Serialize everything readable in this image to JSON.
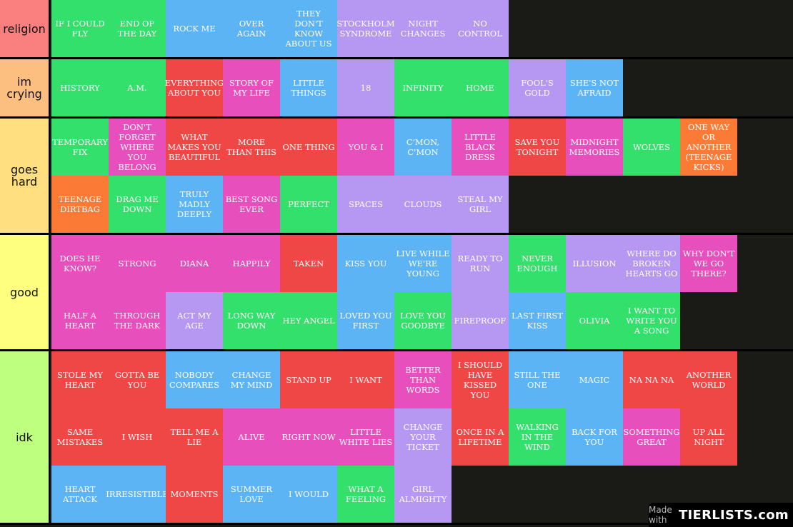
{
  "colors": {
    "background": "#1a1a17",
    "green": "#33e06b",
    "blue": "#5db4f4",
    "purple": "#b697f2",
    "red": "#ef4646",
    "pink": "#e74fbc",
    "orange": "#fb7a35"
  },
  "tiers": [
    {
      "label": "religion",
      "color": "#fa7f7f",
      "items": [
        {
          "text": "IF I COULD FLY",
          "color": "green"
        },
        {
          "text": "END OF THE DAY",
          "color": "green"
        },
        {
          "text": "ROCK ME",
          "color": "blue"
        },
        {
          "text": "OVER AGAIN",
          "color": "blue"
        },
        {
          "text": "THEY DON'T KNOW ABOUT US",
          "color": "blue"
        },
        {
          "text": "STOCKHOLM SYNDROME",
          "color": "purple"
        },
        {
          "text": "NIGHT CHANGES",
          "color": "purple"
        },
        {
          "text": "NO CONTROL",
          "color": "purple"
        }
      ]
    },
    {
      "label": "im crying",
      "color": "#fdbf7f",
      "items": [
        {
          "text": "HISTORY",
          "color": "green"
        },
        {
          "text": "A.M.",
          "color": "green"
        },
        {
          "text": "EVERYTHING ABOUT YOU",
          "color": "red"
        },
        {
          "text": "STORY OF MY LIFE",
          "color": "pink"
        },
        {
          "text": "LITTLE THINGS",
          "color": "blue"
        },
        {
          "text": "18",
          "color": "purple"
        },
        {
          "text": "INFINITY",
          "color": "green"
        },
        {
          "text": "HOME",
          "color": "green"
        },
        {
          "text": "FOOL'S GOLD",
          "color": "purple"
        },
        {
          "text": "SHE'S NOT AFRAID",
          "color": "blue"
        }
      ]
    },
    {
      "label": "goes hard",
      "color": "#ffdf7f",
      "items": [
        {
          "text": "TEMPORARY FIX",
          "color": "green"
        },
        {
          "text": "DON'T FORGET WHERE YOU BELONG",
          "color": "pink"
        },
        {
          "text": "WHAT MAKES YOU BEAUTIFUL",
          "color": "red"
        },
        {
          "text": "MORE THAN THIS",
          "color": "red"
        },
        {
          "text": "ONE THING",
          "color": "red"
        },
        {
          "text": "YOU & I",
          "color": "pink"
        },
        {
          "text": "C'MON, C'MON",
          "color": "blue"
        },
        {
          "text": "LITTLE BLACK DRESS",
          "color": "pink"
        },
        {
          "text": "SAVE YOU TONIGHT",
          "color": "red"
        },
        {
          "text": "MIDNIGHT MEMORIES",
          "color": "pink"
        },
        {
          "text": "WOLVES",
          "color": "green"
        },
        {
          "text": "ONE WAY OR ANOTHER (TEENAGE KICKS)",
          "color": "orange"
        },
        {
          "text": "TEENAGE DIRTBAG",
          "color": "orange"
        },
        {
          "text": "DRAG ME DOWN",
          "color": "green"
        },
        {
          "text": "TRULY MADLY DEEPLY",
          "color": "blue"
        },
        {
          "text": "BEST SONG EVER",
          "color": "pink"
        },
        {
          "text": "PERFECT",
          "color": "green"
        },
        {
          "text": "SPACES",
          "color": "purple"
        },
        {
          "text": "CLOUDS",
          "color": "purple"
        },
        {
          "text": "STEAL MY GIRL",
          "color": "purple"
        }
      ]
    },
    {
      "label": "good",
      "color": "#ffff7f",
      "items": [
        {
          "text": "DOES HE KNOW?",
          "color": "pink"
        },
        {
          "text": "STRONG",
          "color": "pink"
        },
        {
          "text": "DIANA",
          "color": "pink"
        },
        {
          "text": "HAPPILY",
          "color": "pink"
        },
        {
          "text": "TAKEN",
          "color": "red"
        },
        {
          "text": "KISS YOU",
          "color": "blue"
        },
        {
          "text": "LIVE WHILE WE'RE YOUNG",
          "color": "blue"
        },
        {
          "text": "READY TO RUN",
          "color": "purple"
        },
        {
          "text": "NEVER ENOUGH",
          "color": "green"
        },
        {
          "text": "ILLUSION",
          "color": "purple"
        },
        {
          "text": "WHERE DO BROKEN HEARTS GO",
          "color": "purple"
        },
        {
          "text": "WHY DON'T WE GO THERE?",
          "color": "pink"
        },
        {
          "text": "HALF A HEART",
          "color": "pink"
        },
        {
          "text": "THROUGH THE DARK",
          "color": "pink"
        },
        {
          "text": "ACT MY AGE",
          "color": "purple"
        },
        {
          "text": "LONG WAY DOWN",
          "color": "green"
        },
        {
          "text": "HEY ANGEL",
          "color": "green"
        },
        {
          "text": "LOVED YOU FIRST",
          "color": "blue"
        },
        {
          "text": "LOVE YOU GOODBYE",
          "color": "green"
        },
        {
          "text": "FIREPROOF",
          "color": "purple"
        },
        {
          "text": "LAST FIRST KISS",
          "color": "blue"
        },
        {
          "text": "OLIVIA",
          "color": "green"
        },
        {
          "text": "I WANT TO WRITE YOU A SONG",
          "color": "green"
        }
      ]
    },
    {
      "label": "idk",
      "color": "#bfff7f",
      "items": [
        {
          "text": "STOLE MY HEART",
          "color": "red"
        },
        {
          "text": "GOTTA BE YOU",
          "color": "red"
        },
        {
          "text": "NOBODY COMPARES",
          "color": "blue"
        },
        {
          "text": "CHANGE MY MIND",
          "color": "blue"
        },
        {
          "text": "STAND UP",
          "color": "red"
        },
        {
          "text": "I WANT",
          "color": "red"
        },
        {
          "text": "BETTER THAN WORDS",
          "color": "pink"
        },
        {
          "text": "I SHOULD HAVE KISSED YOU",
          "color": "red"
        },
        {
          "text": "STILL THE ONE",
          "color": "blue"
        },
        {
          "text": "MAGIC",
          "color": "blue"
        },
        {
          "text": "NA NA NA",
          "color": "red"
        },
        {
          "text": "ANOTHER WORLD",
          "color": "red"
        },
        {
          "text": "SAME MISTAKES",
          "color": "red"
        },
        {
          "text": "I WISH",
          "color": "red"
        },
        {
          "text": "TELL ME A LIE",
          "color": "red"
        },
        {
          "text": "ALIVE",
          "color": "pink"
        },
        {
          "text": "RIGHT NOW",
          "color": "pink"
        },
        {
          "text": "LITTLE WHITE LIES",
          "color": "pink"
        },
        {
          "text": "CHANGE YOUR TICKET",
          "color": "purple"
        },
        {
          "text": "ONCE IN A LIFETIME",
          "color": "red"
        },
        {
          "text": "WALKING IN THE WIND",
          "color": "green"
        },
        {
          "text": "BACK FOR YOU",
          "color": "blue"
        },
        {
          "text": "SOMETHING GREAT",
          "color": "pink"
        },
        {
          "text": "UP ALL NIGHT",
          "color": "red"
        },
        {
          "text": "HEART ATTACK",
          "color": "blue"
        },
        {
          "text": "IRRESISTIBLE",
          "color": "blue"
        },
        {
          "text": "MOMENTS",
          "color": "red"
        },
        {
          "text": "SUMMER LOVE",
          "color": "blue"
        },
        {
          "text": "I WOULD",
          "color": "blue"
        },
        {
          "text": "WHAT A FEELING",
          "color": "green"
        },
        {
          "text": "GIRL ALMIGHTY",
          "color": "purple"
        }
      ]
    }
  ],
  "watermark": {
    "prefix": "Made with",
    "brand": "TIERLISTS.com"
  }
}
